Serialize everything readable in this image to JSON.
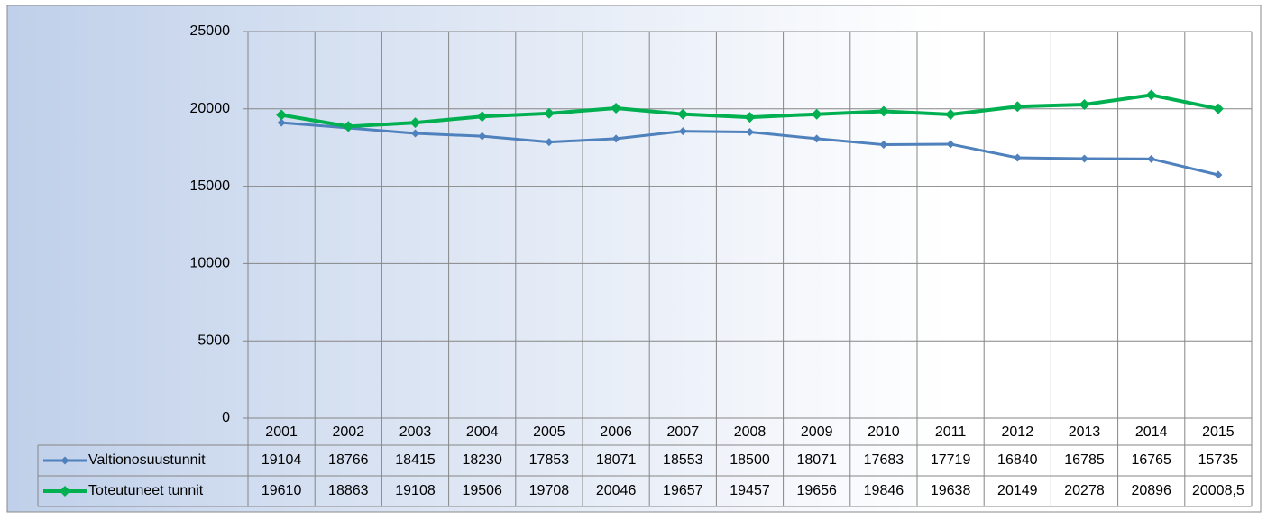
{
  "chart_data": {
    "type": "line",
    "categories": [
      "2001",
      "2002",
      "2003",
      "2004",
      "2005",
      "2006",
      "2007",
      "2008",
      "2009",
      "2010",
      "2011",
      "2012",
      "2013",
      "2014",
      "2015"
    ],
    "series": [
      {
        "name": "Valtionosuustunnit",
        "color": "#4f81bd",
        "values": [
          19104,
          18766,
          18415,
          18230,
          17853,
          18071,
          18553,
          18500,
          18071,
          17683,
          17719,
          16840,
          16785,
          16765,
          15735
        ]
      },
      {
        "name": "Toteutuneet tunnit",
        "color": "#00b050",
        "values": [
          19610,
          18863,
          19108,
          19506,
          19708,
          20046,
          19657,
          19457,
          19656,
          19846,
          19638,
          20149,
          20278,
          20896,
          20008.5
        ],
        "value_labels": [
          "19610",
          "18863",
          "19108",
          "19506",
          "19708",
          "20046",
          "19657",
          "19457",
          "19656",
          "19846",
          "19638",
          "20149",
          "20278",
          "20896",
          "20008,5"
        ]
      }
    ],
    "ylim": [
      0,
      25000
    ],
    "yticks": [
      0,
      5000,
      10000,
      15000,
      20000,
      25000
    ],
    "grid": true
  }
}
